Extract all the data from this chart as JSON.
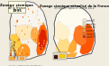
{
  "fig_bg": "#f0ece0",
  "left_panel": {
    "bg": "#ddd8c8",
    "title_box_color": "#fffff0",
    "title_lines": [
      "Zonage sismique",
      "de la France",
      "1995"
    ],
    "map_base": "#f5f0e5",
    "zones": [
      {
        "color": "#ffffff",
        "region": "north_white"
      },
      {
        "color": "#ffe0b0",
        "region": "center_light"
      },
      {
        "color": "#ffcc66",
        "region": "sw_yellow"
      },
      {
        "color": "#ffa030",
        "region": "pyrenees"
      },
      {
        "color": "#ff7010",
        "region": "alps_light"
      },
      {
        "color": "#ee2200",
        "region": "alps_red"
      },
      {
        "color": "#ffcccc",
        "region": "scattered_pink"
      }
    ],
    "legend_colors": [
      "#ffffff",
      "#ffe8b0",
      "#ffcc66",
      "#ffa030",
      "#ff7010",
      "#ee2200"
    ],
    "legend_labels": [
      "Ia",
      "Ib",
      "II",
      "IIIa",
      "IIIb",
      "IV"
    ],
    "inset_bg": "#e8e0d0"
  },
  "right_panel": {
    "bg": "#fff8f0",
    "title": "Zonage sismique actualisé de la France",
    "map_base": "#fdfaf5",
    "zones": [
      {
        "color": "#fffdf0",
        "region": "zone0_white"
      },
      {
        "color": "#ffeebb",
        "region": "zone1_cream"
      },
      {
        "color": "#ffcc66",
        "region": "zone2_yellow"
      },
      {
        "color": "#ffa030",
        "region": "zone3_orange"
      },
      {
        "color": "#ff6600",
        "region": "zone4_darkorange"
      },
      {
        "color": "#cc2200",
        "region": "zone5_red"
      }
    ],
    "legend_colors": [
      "#fffdf0",
      "#ffeebb",
      "#ffcc66",
      "#ffa030",
      "#ff6600",
      "#cc2200"
    ],
    "legend_labels": [
      "zone 0",
      "zone Ia",
      "zone Ib",
      "zone II",
      "zone III",
      "zone IV"
    ],
    "inset_bg": "#e0d8c8",
    "inset_dark": "#441100",
    "inset_yellow": "#ffcc00"
  }
}
